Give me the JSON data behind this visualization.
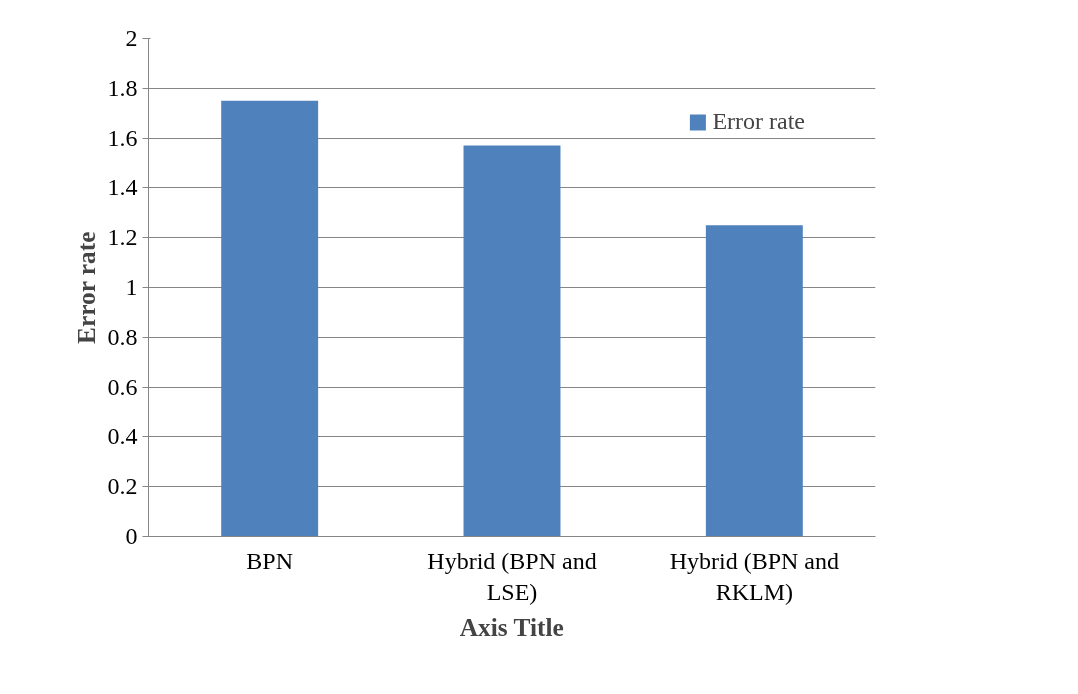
{
  "chart_data": {
    "type": "bar",
    "categories": [
      "BPN",
      "Hybrid (BPN and LSE)",
      "Hybrid (BPN and RKLM)"
    ],
    "series": [
      {
        "name": "Error rate",
        "color": "#4f81bd",
        "values": [
          1.75,
          1.57,
          1.25
        ]
      }
    ],
    "xlabel": "Axis Title",
    "ylabel": "Error rate",
    "ylim": [
      0,
      2
    ],
    "yticks": [
      0,
      0.2,
      0.4,
      0.6,
      0.8,
      1,
      1.2,
      1.4,
      1.6,
      1.8,
      2
    ],
    "grid": "y",
    "legend": "top right"
  }
}
